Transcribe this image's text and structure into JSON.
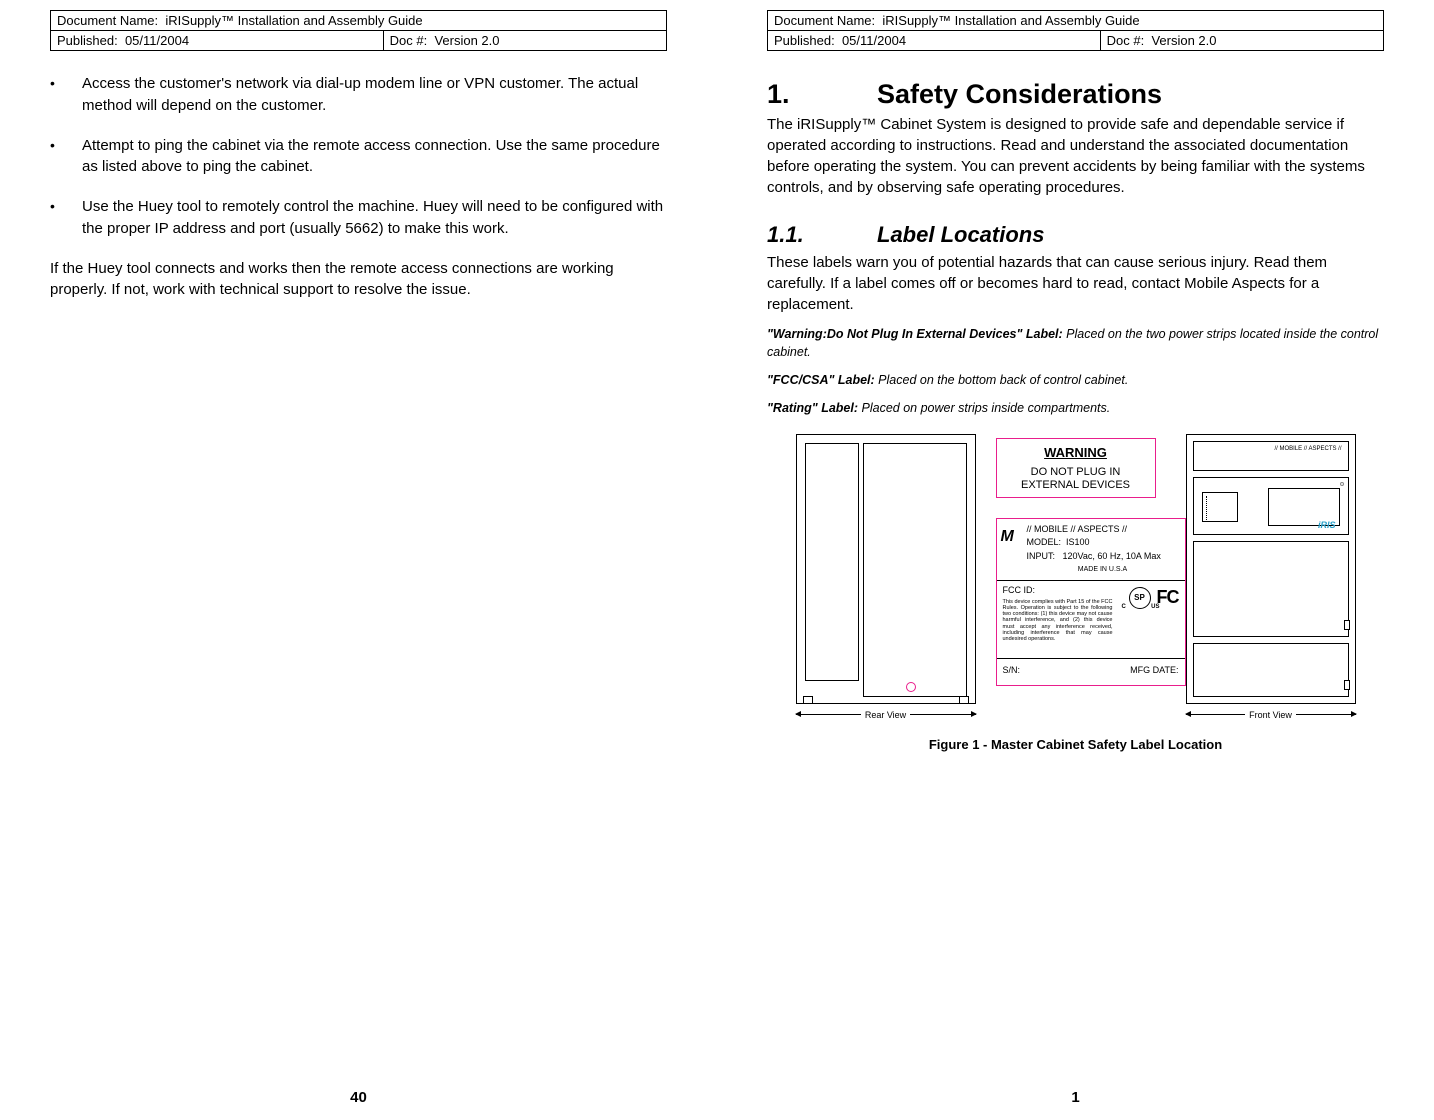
{
  "header": {
    "doc_name_label": "Document Name:",
    "doc_name_value": "iRISupply™ Installation and Assembly Guide",
    "published_label": "Published:",
    "published_value": "05/11/2004",
    "docnum_label": "Doc #:",
    "docnum_value": "Version 2.0"
  },
  "left": {
    "bullets": [
      "Access the customer's network via dial-up modem line or VPN customer.  The actual method will depend on the customer.",
      "Attempt to ping the cabinet via the remote access connection.  Use the same procedure as listed above to ping the cabinet.",
      "Use the Huey tool to remotely control the machine.  Huey will need to be configured with the proper IP address and port (usually 5662) to make this work."
    ],
    "para": "If the Huey tool connects and works then the remote access connections are working properly.  If not, work with technical support to resolve the issue.",
    "page_num": "40"
  },
  "right": {
    "h1_num": "1.",
    "h1_text": "Safety Considerations",
    "p1": "The iRISupply™ Cabinet System is designed to provide safe and dependable service if operated according to instructions.  Read and understand the associated documentation before operating the system.  You can prevent accidents by being familiar with the systems controls, and by observing safe operating procedures.",
    "h2_num": "1.1.",
    "h2_text": "Label Locations",
    "p2": "These labels warn you of potential hazards that can cause serious injury.  Read them carefully. If a label comes off or becomes hard to read, contact Mobile Aspects for a replacement.",
    "label_notes": [
      {
        "bold": "\"Warning:Do Not Plug In External Devices\" Label:",
        "rest": " Placed on the two power strips located inside the control cabinet."
      },
      {
        "bold": "\"FCC/CSA\" Label:",
        "rest": " Placed on the bottom back of control cabinet."
      },
      {
        "bold": "\"Rating\" Label:",
        "rest": " Placed on power strips inside compartments."
      }
    ],
    "figure_caption": "Figure 1 - Master Cabinet Safety Label Location",
    "page_num": "1"
  },
  "diagram": {
    "accent_color": "#e91e8c",
    "rear_view_label": "Rear View",
    "front_view_label": "Front View",
    "front_top_brand": "// MOBILE // ASPECTS //",
    "front_logo": "iRIS",
    "warning": {
      "title": "WARNING",
      "text_l1": "DO NOT PLUG IN",
      "text_l2": "EXTERNAL DEVICES"
    },
    "spec": {
      "brand": "// MOBILE // ASPECTS //",
      "model_label": "MODEL:",
      "model_value": "IS100",
      "input_label": "INPUT:",
      "input_value": "120Vac, 60 Hz, 10A Max",
      "made": "MADE IN U.S.A",
      "fcc_id_label": "FCC ID:",
      "fineprint": "This device complies with Part 15 of the FCC Rules. Operation is subject to the following two conditions: (1) this device may not cause harmful interference, and (2) this device must accept any interference received, including interference that may cause undesired operations.",
      "csa_text": "SP",
      "fcc_mark": "FC",
      "sn_label": "S/N:",
      "mfg_label": "MFG DATE:"
    }
  }
}
